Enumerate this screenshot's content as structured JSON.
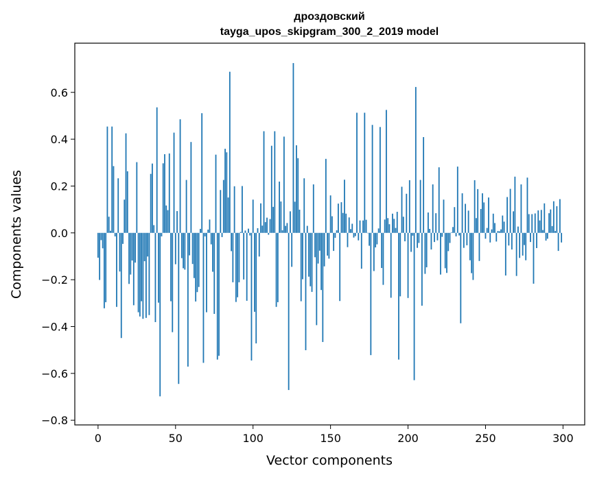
{
  "chart_data": {
    "type": "bar",
    "title": "дроздовский",
    "subtitle": "tayga_upos_skipgram_300_2_2019 model",
    "xlabel": "Vector components",
    "ylabel": "Components values",
    "xlim": [
      -15,
      314
    ],
    "ylim": [
      -0.82,
      0.81
    ],
    "xticks": [
      0,
      50,
      100,
      150,
      200,
      250,
      300
    ],
    "yticks": [
      -0.8,
      -0.6,
      -0.4,
      -0.2,
      0.0,
      0.2,
      0.4,
      0.6
    ],
    "ytick_labels": [
      "−0.8",
      "−0.6",
      "−0.4",
      "−0.2",
      "0.0",
      "0.2",
      "0.4",
      "0.6"
    ],
    "bar_color": "#1f77b4",
    "grid": false,
    "values": [
      -0.106,
      -0.201,
      -0.031,
      -0.066,
      -0.322,
      -0.296,
      0.454,
      0.069,
      0.009,
      0.454,
      0.285,
      -0.015,
      -0.316,
      0.233,
      -0.165,
      -0.449,
      -0.047,
      0.142,
      0.425,
      0.263,
      -0.218,
      -0.178,
      -0.118,
      -0.309,
      -0.127,
      0.302,
      -0.339,
      -0.357,
      -0.292,
      -0.367,
      -0.121,
      -0.363,
      -0.101,
      -0.351,
      0.252,
      0.296,
      0.033,
      -0.381,
      0.536,
      -0.298,
      -0.698,
      -0.015,
      0.297,
      0.336,
      0.117,
      0.097,
      0.339,
      -0.292,
      -0.424,
      0.428,
      -0.134,
      0.093,
      -0.645,
      0.485,
      -0.108,
      -0.151,
      -0.157,
      0.226,
      -0.571,
      -0.096,
      0.388,
      -0.133,
      -0.193,
      -0.293,
      -0.253,
      -0.231,
      0.017,
      0.511,
      -0.555,
      -0.015,
      -0.339,
      0.014,
      0.057,
      -0.049,
      -0.166,
      -0.346,
      0.334,
      -0.541,
      -0.525,
      0.183,
      -0.018,
      0.226,
      0.359,
      0.344,
      0.151,
      0.688,
      -0.078,
      -0.211,
      0.199,
      -0.295,
      -0.275,
      -0.211,
      0.004,
      0.2,
      -0.199,
      0.01,
      -0.29,
      0.018,
      -0.011,
      -0.545,
      0.142,
      -0.337,
      -0.472,
      0.02,
      -0.101,
      0.126,
      0.031,
      0.434,
      0.046,
      0.065,
      -0.008,
      0.059,
      0.372,
      0.111,
      0.434,
      -0.316,
      -0.296,
      0.219,
      0.134,
      0.011,
      0.411,
      0.03,
      0.042,
      -0.671,
      0.092,
      -0.145,
      0.725,
      0.133,
      0.374,
      0.319,
      0.099,
      -0.292,
      -0.198,
      0.233,
      -0.501,
      0.03,
      -0.187,
      -0.228,
      -0.252,
      0.207,
      -0.104,
      -0.394,
      -0.131,
      -0.076,
      -0.244,
      -0.466,
      -0.143,
      0.316,
      -0.097,
      -0.11,
      0.16,
      0.071,
      -0.077,
      -0.021,
      0.011,
      0.125,
      -0.291,
      0.131,
      0.085,
      0.227,
      0.082,
      -0.061,
      0.066,
      0.016,
      0.039,
      -0.02,
      -0.014,
      0.513,
      -0.032,
      0.053,
      -0.153,
      0.053,
      0.513,
      0.056,
      -0.001,
      -0.055,
      -0.522,
      0.461,
      -0.163,
      -0.062,
      -0.049,
      0.019,
      0.452,
      -0.15,
      -0.222,
      0.057,
      0.525,
      0.063,
      0.037,
      -0.277,
      0.082,
      0.06,
      0.021,
      0.09,
      -0.541,
      -0.271,
      0.197,
      0.069,
      -0.036,
      0.167,
      -0.278,
      0.225,
      -0.081,
      -0.012,
      -0.629,
      0.623,
      -0.064,
      -0.043,
      0.226,
      -0.311,
      0.409,
      -0.175,
      -0.147,
      0.087,
      0.017,
      -0.071,
      0.207,
      -0.039,
      0.084,
      -0.032,
      0.28,
      -0.178,
      -0.017,
      0.142,
      -0.151,
      -0.171,
      -0.078,
      -0.043,
      0.002,
      0.025,
      0.11,
      -0.015,
      0.283,
      -0.011,
      -0.386,
      0.169,
      -0.064,
      0.124,
      -0.053,
      0.095,
      -0.117,
      -0.172,
      -0.201,
      0.225,
      0.063,
      0.187,
      -0.12,
      0.102,
      0.169,
      0.13,
      -0.025,
      0.021,
      0.151,
      -0.041,
      0.015,
      0.082,
      0.042,
      -0.037,
      0.008,
      0.007,
      0.015,
      0.074,
      0.048,
      -0.182,
      0.153,
      -0.054,
      0.188,
      -0.071,
      0.092,
      0.24,
      -0.184,
      0.027,
      -0.107,
      0.207,
      -0.097,
      -0.052,
      -0.117,
      0.236,
      0.08,
      -0.039,
      0.08,
      -0.217,
      0.083,
      -0.065,
      0.096,
      0.053,
      0.098,
      0.012,
      0.126,
      -0.033,
      -0.025,
      0.084,
      0.1,
      0.029,
      0.135,
      0.008,
      0.114,
      -0.077,
      0.144,
      -0.041
    ]
  }
}
